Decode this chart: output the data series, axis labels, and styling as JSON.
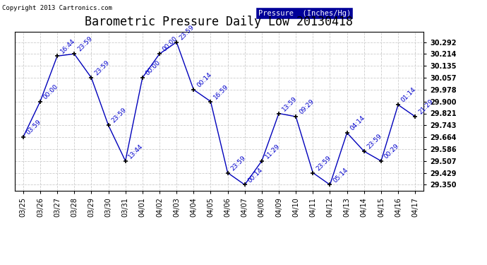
{
  "title": "Barometric Pressure Daily Low 20130418",
  "copyright": "Copyright 2013 Cartronics.com",
  "legend_label": "Pressure  (Inches/Hg)",
  "background_color": "#ffffff",
  "plot_bg_color": "#ffffff",
  "grid_color": "#cccccc",
  "line_color": "#0000bb",
  "label_color": "#0000cc",
  "title_color": "#000000",
  "marker_color": "#000000",
  "dates": [
    "03/25",
    "03/26",
    "03/27",
    "03/28",
    "03/29",
    "03/30",
    "03/31",
    "04/01",
    "04/02",
    "04/03",
    "04/04",
    "04/05",
    "04/06",
    "04/07",
    "04/08",
    "04/09",
    "04/10",
    "04/11",
    "04/12",
    "04/13",
    "04/14",
    "04/15",
    "04/16",
    "04/17"
  ],
  "values": [
    29.664,
    29.9,
    30.2,
    30.214,
    30.057,
    29.743,
    29.507,
    30.057,
    30.214,
    30.292,
    29.978,
    29.9,
    29.429,
    29.35,
    29.507,
    29.821,
    29.8,
    29.429,
    29.35,
    29.693,
    29.571,
    29.507,
    29.878,
    29.8
  ],
  "time_labels": [
    "03:59",
    "00:00",
    "16:44",
    "23:59",
    "23:59",
    "23:59",
    "13:44",
    "00:00",
    "00:00",
    "23:59",
    "00:14",
    "16:59",
    "23:59",
    "00:14",
    "11:29",
    "13:59",
    "09:29",
    "23:59",
    "05:14",
    "04:14",
    "23:59",
    "00:29",
    "01:14",
    "21:29"
  ],
  "yticks": [
    29.35,
    29.429,
    29.507,
    29.586,
    29.664,
    29.743,
    29.821,
    29.9,
    29.978,
    30.057,
    30.135,
    30.214,
    30.292
  ],
  "ylim_min": 29.31,
  "ylim_max": 30.36,
  "title_fontsize": 12,
  "label_fontsize": 6.5,
  "tick_fontsize": 7,
  "copyright_fontsize": 6.5
}
